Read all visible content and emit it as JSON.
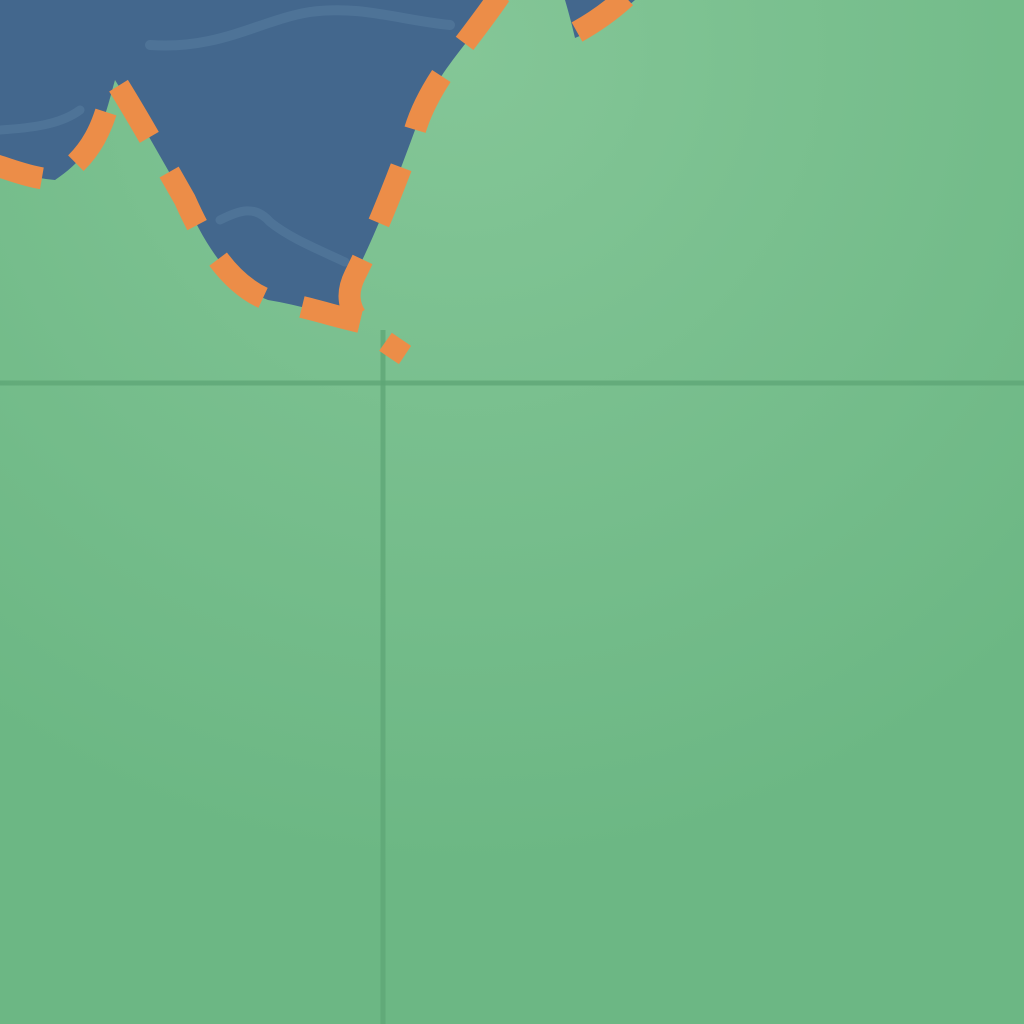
{
  "map": {
    "colors": {
      "land": "#6cb784",
      "land_highlight": "#84c697",
      "water": "#43678d",
      "water_dark": "#3a5b80",
      "water_ripple": "#587ea0",
      "border": "#ec8d48",
      "grid_line": "#5fa777"
    },
    "features": {
      "water_body": "lake-or-sea",
      "border_style": "dashed",
      "grid": true
    }
  }
}
